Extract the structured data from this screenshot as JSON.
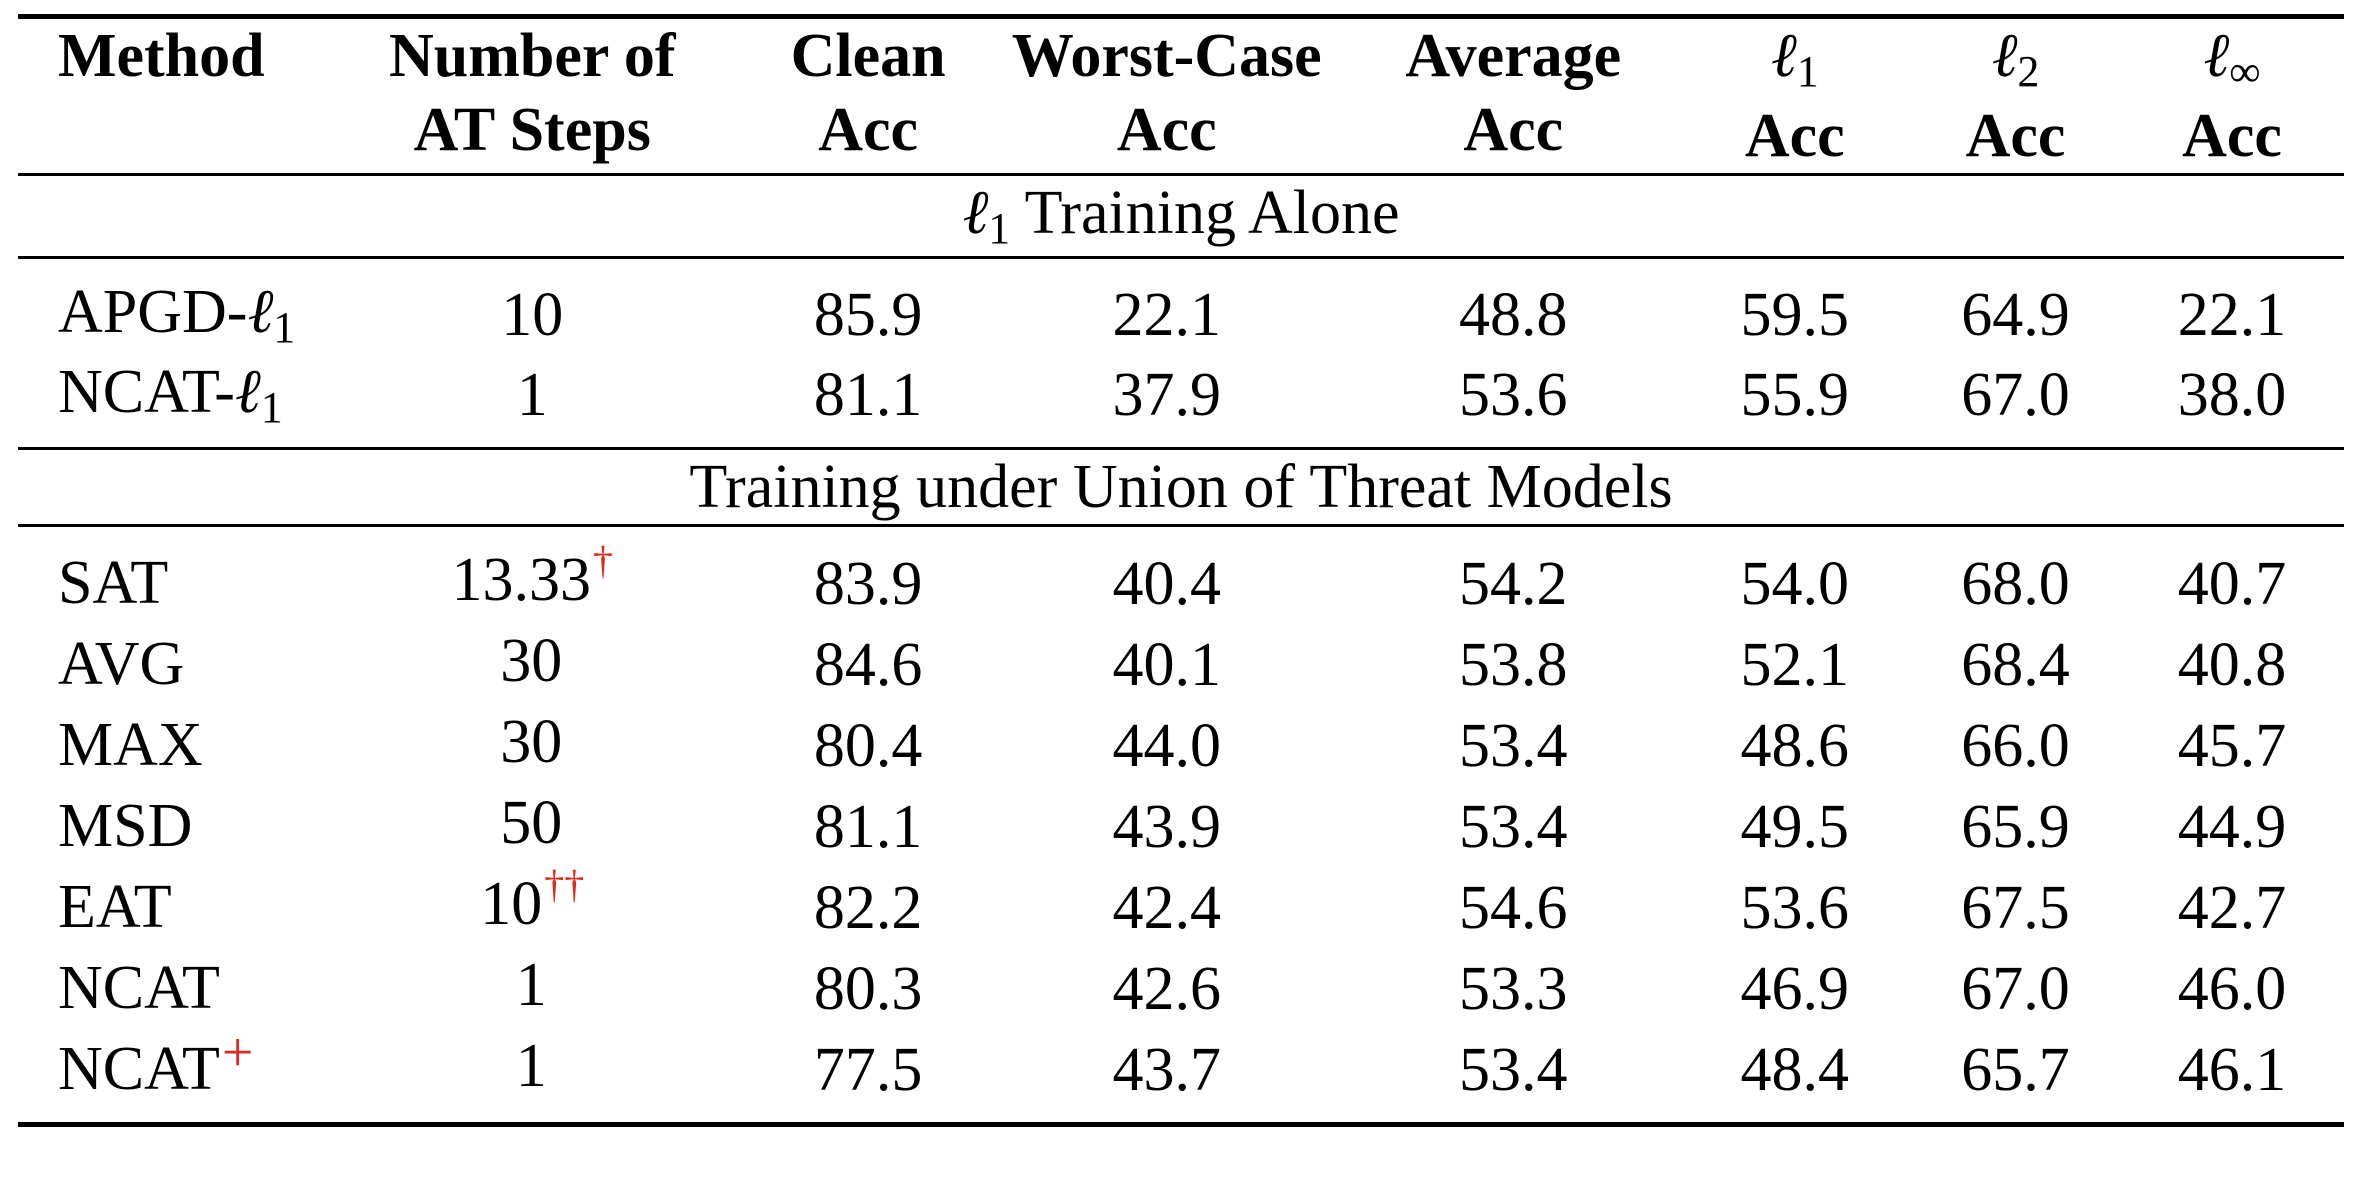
{
  "table": {
    "columns": [
      {
        "key": "method",
        "line1": "Method",
        "line2": ""
      },
      {
        "key": "steps",
        "line1": "Number of",
        "line2": "AT Steps"
      },
      {
        "key": "clean",
        "line1": "Clean",
        "line2": "Acc"
      },
      {
        "key": "worst",
        "line1": "Worst-Case",
        "line2": "Acc"
      },
      {
        "key": "avg",
        "line1": "Average",
        "line2": "Acc"
      },
      {
        "key": "l1",
        "line1_ell": "ℓ",
        "line1_sub": "1",
        "line2": "Acc"
      },
      {
        "key": "l2",
        "line1_ell": "ℓ",
        "line1_sub": "2",
        "line2": "Acc"
      },
      {
        "key": "linf",
        "line1_ell": "ℓ",
        "line1_sub": "∞",
        "line2": "Acc"
      }
    ],
    "sections": [
      {
        "title_ell": "ℓ",
        "title_sub": "1",
        "title_text": " Training Alone",
        "rows": [
          {
            "method": "APGD-",
            "method_ell": "ℓ",
            "method_sub": "1",
            "steps": "10",
            "steps_mark": "",
            "clean": "85.9",
            "worst": "22.1",
            "avg": "48.8",
            "l1": "59.5",
            "l2": "64.9",
            "linf": "22.1"
          },
          {
            "method": "NCAT-",
            "method_ell": "ℓ",
            "method_sub": "1",
            "steps": "1",
            "steps_mark": "",
            "clean": "81.1",
            "worst": "37.9",
            "avg": "53.6",
            "l1": "55.9",
            "l2": "67.0",
            "linf": "38.0"
          }
        ]
      },
      {
        "title_text": "Training under Union of Threat Models",
        "rows": [
          {
            "method": "SAT",
            "method_mark": "",
            "steps": "13.33",
            "steps_mark": "†",
            "clean": "83.9",
            "worst": "40.4",
            "avg": "54.2",
            "l1": "54.0",
            "l2": "68.0",
            "linf": "40.7"
          },
          {
            "method": "AVG",
            "method_mark": "",
            "steps": "30",
            "steps_mark": "",
            "clean": "84.6",
            "worst": "40.1",
            "avg": "53.8",
            "l1": "52.1",
            "l2": "68.4",
            "linf": "40.8"
          },
          {
            "method": "MAX",
            "method_mark": "",
            "steps": "30",
            "steps_mark": "",
            "clean": "80.4",
            "worst": "44.0",
            "avg": "53.4",
            "l1": "48.6",
            "l2": "66.0",
            "linf": "45.7"
          },
          {
            "method": "MSD",
            "method_mark": "",
            "steps": "50",
            "steps_mark": "",
            "clean": "81.1",
            "worst": "43.9",
            "avg": "53.4",
            "l1": "49.5",
            "l2": "65.9",
            "linf": "44.9"
          },
          {
            "method": "EAT",
            "method_mark": "",
            "steps": "10",
            "steps_mark": "††",
            "clean": "82.2",
            "worst": "42.4",
            "avg": "54.6",
            "l1": "53.6",
            "l2": "67.5",
            "linf": "42.7"
          },
          {
            "method": "NCAT",
            "method_mark": "",
            "steps": "1",
            "steps_mark": "",
            "clean": "80.3",
            "worst": "42.6",
            "avg": "53.3",
            "l1": "46.9",
            "l2": "67.0",
            "linf": "46.0"
          },
          {
            "method": "NCAT",
            "method_mark": "+",
            "steps": "1",
            "steps_mark": "",
            "clean": "77.5",
            "worst": "43.7",
            "avg": "53.4",
            "l1": "48.4",
            "l2": "65.7",
            "linf": "46.1"
          }
        ]
      }
    ]
  },
  "colors": {
    "mark": "#e0281e",
    "text": "#000000"
  }
}
